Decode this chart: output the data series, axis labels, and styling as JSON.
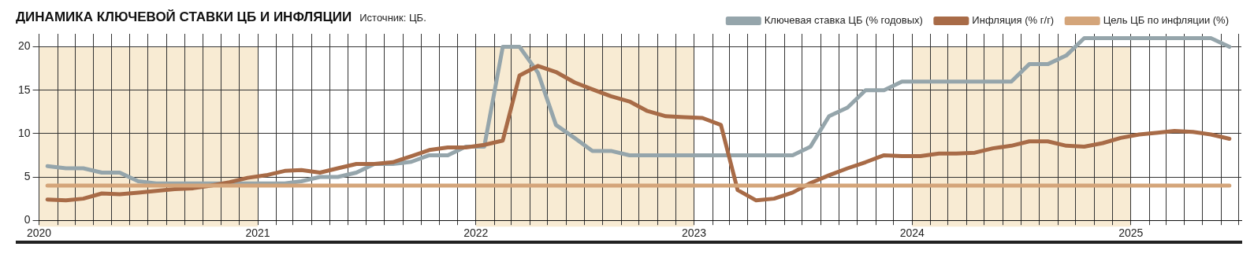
{
  "chart_data": {
    "type": "line",
    "title": "ДИНАМИКА КЛЮЧЕВОЙ СТАВКИ ЦБ И ИНФЛЯЦИИ",
    "annotations": [
      "Источник: ЦБ."
    ],
    "x": [
      "2020-01-15",
      "2020-02-15",
      "2020-03-15",
      "2020-04-15",
      "2020-05-15",
      "2020-06-15",
      "2020-07-15",
      "2020-08-15",
      "2020-09-15",
      "2020-10-15",
      "2020-11-15",
      "2020-12-15",
      "2021-01-15",
      "2021-02-15",
      "2021-03-15",
      "2021-04-15",
      "2021-05-15",
      "2021-06-15",
      "2021-07-15",
      "2021-08-15",
      "2021-09-15",
      "2021-10-15",
      "2021-11-15",
      "2021-12-15",
      "2022-01-15",
      "2022-02-15",
      "2022-03-15",
      "2022-04-15",
      "2022-05-15",
      "2022-06-15",
      "2022-07-15",
      "2022-08-15",
      "2022-09-15",
      "2022-10-15",
      "2022-11-15",
      "2022-12-15",
      "2023-01-15",
      "2023-02-15",
      "2023-03-15",
      "2023-04-15",
      "2023-05-15",
      "2023-06-15",
      "2023-07-15",
      "2023-08-15",
      "2023-09-15",
      "2023-10-15",
      "2023-11-15",
      "2023-12-15",
      "2024-01-15",
      "2024-02-15",
      "2024-03-15",
      "2024-04-15",
      "2024-05-15",
      "2024-06-15",
      "2024-07-15",
      "2024-08-15",
      "2024-09-15",
      "2024-10-15",
      "2024-11-15",
      "2024-12-15",
      "2025-01-15",
      "2025-02-15",
      "2025-03-15",
      "2025-04-15",
      "2025-05-15",
      "2025-06-15"
    ],
    "series": [
      {
        "name": "Ключевая ставка ЦБ (% годовых)",
        "color": "#95a5ab",
        "values": [
          6.25,
          6,
          6,
          5.5,
          5.5,
          4.5,
          4.25,
          4.25,
          4.25,
          4.25,
          4.25,
          4.25,
          4.25,
          4.25,
          4.5,
          5,
          5,
          5.5,
          6.5,
          6.5,
          6.75,
          7.5,
          7.5,
          8.5,
          8.5,
          20,
          20,
          17,
          11,
          9.5,
          8,
          8,
          7.5,
          7.5,
          7.5,
          7.5,
          7.5,
          7.5,
          7.5,
          7.5,
          7.5,
          7.5,
          8.5,
          12,
          13,
          15,
          15,
          16,
          16,
          16,
          16,
          16,
          16,
          16,
          18,
          18,
          19,
          21,
          21,
          21,
          21,
          21,
          21,
          21,
          21,
          20
        ]
      },
      {
        "name": "Инфляция (% г/г)",
        "color": "#a86b47",
        "values": [
          2.4,
          2.3,
          2.5,
          3.1,
          3,
          3.2,
          3.4,
          3.6,
          3.7,
          4,
          4.4,
          4.9,
          5.2,
          5.7,
          5.8,
          5.5,
          6,
          6.5,
          6.5,
          6.7,
          7.4,
          8.1,
          8.4,
          8.4,
          8.7,
          9.2,
          16.7,
          17.8,
          17.1,
          15.9,
          15.1,
          14.3,
          13.7,
          12.6,
          12,
          11.9,
          11.8,
          11,
          3.5,
          2.3,
          2.5,
          3.2,
          4.3,
          5.2,
          6,
          6.7,
          7.5,
          7.4,
          7.4,
          7.7,
          7.7,
          7.8,
          8.3,
          8.6,
          9.1,
          9.1,
          8.6,
          8.5,
          8.9,
          9.5,
          9.9,
          10.1,
          10.3,
          10.2,
          9.9,
          9.4
        ]
      },
      {
        "name": "Цель ЦБ по инфляции (%)",
        "color": "#d4a57a",
        "x": [
          "2020-01-15",
          "2025-06-15"
        ],
        "values": [
          4,
          4
        ]
      }
    ],
    "xlim": [
      "2020-01",
      "2025-07-05"
    ],
    "xticks": [
      {
        "value": "2020-01",
        "label": "2020"
      },
      {
        "value": "2020-02",
        "label": null
      },
      {
        "value": "2020-03",
        "label": null
      },
      {
        "value": "2020-04",
        "label": null
      },
      {
        "value": "2020-05",
        "label": null
      },
      {
        "value": "2020-06",
        "label": null
      },
      {
        "value": "2020-07",
        "label": null
      },
      {
        "value": "2020-08",
        "label": null
      },
      {
        "value": "2020-09",
        "label": null
      },
      {
        "value": "2020-10",
        "label": null
      },
      {
        "value": "2020-11",
        "label": null
      },
      {
        "value": "2020-12",
        "label": null
      },
      {
        "value": "2021-01",
        "label": "2021"
      },
      {
        "value": "2021-02",
        "label": null
      },
      {
        "value": "2021-03",
        "label": null
      },
      {
        "value": "2021-04",
        "label": null
      },
      {
        "value": "2021-05",
        "label": null
      },
      {
        "value": "2021-06",
        "label": null
      },
      {
        "value": "2021-07",
        "label": null
      },
      {
        "value": "2021-08",
        "label": null
      },
      {
        "value": "2021-09",
        "label": null
      },
      {
        "value": "2021-10",
        "label": null
      },
      {
        "value": "2021-11",
        "label": null
      },
      {
        "value": "2021-12",
        "label": null
      },
      {
        "value": "2022-01",
        "label": "2022"
      },
      {
        "value": "2022-02",
        "label": null
      },
      {
        "value": "2022-03",
        "label": null
      },
      {
        "value": "2022-04",
        "label": null
      },
      {
        "value": "2022-05",
        "label": null
      },
      {
        "value": "2022-06",
        "label": null
      },
      {
        "value": "2022-07",
        "label": null
      },
      {
        "value": "2022-08",
        "label": null
      },
      {
        "value": "2022-09",
        "label": null
      },
      {
        "value": "2022-10",
        "label": null
      },
      {
        "value": "2022-11",
        "label": null
      },
      {
        "value": "2022-12",
        "label": null
      },
      {
        "value": "2023-01",
        "label": "2023"
      },
      {
        "value": "2023-02",
        "label": null
      },
      {
        "value": "2023-03",
        "label": null
      },
      {
        "value": "2023-04",
        "label": null
      },
      {
        "value": "2023-05",
        "label": null
      },
      {
        "value": "2023-06",
        "label": null
      },
      {
        "value": "2023-07",
        "label": null
      },
      {
        "value": "2023-08",
        "label": null
      },
      {
        "value": "2023-09",
        "label": null
      },
      {
        "value": "2023-10",
        "label": null
      },
      {
        "value": "2023-11",
        "label": null
      },
      {
        "value": "2023-12",
        "label": null
      },
      {
        "value": "2024-01",
        "label": "2024"
      },
      {
        "value": "2024-02",
        "label": null
      },
      {
        "value": "2024-03",
        "label": null
      },
      {
        "value": "2024-04",
        "label": null
      },
      {
        "value": "2024-05",
        "label": null
      },
      {
        "value": "2024-06",
        "label": null
      },
      {
        "value": "2024-07",
        "label": null
      },
      {
        "value": "2024-08",
        "label": null
      },
      {
        "value": "2024-09",
        "label": null
      },
      {
        "value": "2024-10",
        "label": null
      },
      {
        "value": "2024-11",
        "label": null
      },
      {
        "value": "2024-12",
        "label": null
      },
      {
        "value": "2025-01",
        "label": "2025"
      },
      {
        "value": "2025-02",
        "label": null
      },
      {
        "value": "2025-03",
        "label": null
      },
      {
        "value": "2025-04",
        "label": null
      },
      {
        "value": "2025-05",
        "label": null
      },
      {
        "value": "2025-06",
        "label": null
      },
      {
        "value": "2025-07",
        "label": null
      }
    ],
    "ylim": [
      0,
      21.5
    ],
    "yticks": [
      0,
      5,
      10,
      15,
      20
    ],
    "bands": [
      {
        "axis": "x",
        "from": "2020-01",
        "to": "2021-01",
        "color": "#f8ebd3"
      },
      {
        "axis": "x",
        "from": "2022-01",
        "to": "2023-01",
        "color": "#f8ebd3"
      },
      {
        "axis": "x",
        "from": "2024-01",
        "to": "2025-01",
        "color": "#f8ebd3"
      }
    ],
    "grid": true,
    "legend": "top right",
    "marker": "none",
    "line_style": "solid"
  }
}
